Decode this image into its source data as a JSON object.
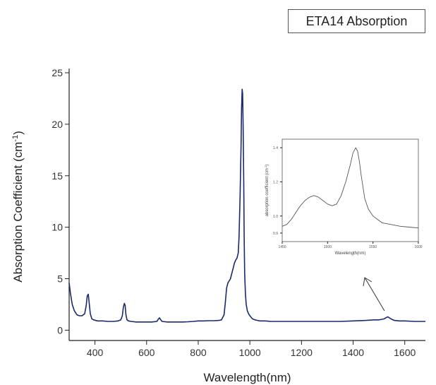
{
  "chart_data": [
    {
      "type": "line",
      "title": "ETA14 Absorption",
      "xlabel": "Wavelength(nm)",
      "ylabel": "Absorption Coefficient (cm",
      "ylabel_superscript": "-1",
      "ylabel_close": ")",
      "xlim": [
        300,
        1680
      ],
      "ylim": [
        -1,
        25
      ],
      "xticks": [
        400,
        600,
        800,
        1000,
        1200,
        1400,
        1600
      ],
      "yticks": [
        0,
        5,
        10,
        15,
        20,
        25
      ],
      "grid": false,
      "color": "#1a2a6c",
      "series": [
        {
          "x": [
            300,
            305,
            312,
            320,
            330,
            340,
            350,
            360,
            366,
            370,
            374,
            378,
            382,
            388,
            395,
            410,
            430,
            450,
            470,
            490,
            500,
            506,
            510,
            514,
            517,
            520,
            524,
            530,
            540,
            560,
            580,
            600,
            620,
            640,
            646,
            650,
            655,
            660,
            680,
            700,
            720,
            740,
            760,
            780,
            800,
            820,
            840,
            860,
            880,
            890,
            900,
            905,
            910,
            915,
            920,
            925,
            930,
            935,
            940,
            945,
            950,
            955,
            958,
            962,
            966,
            968,
            970,
            972,
            974,
            976,
            978,
            980,
            983,
            986,
            990,
            995,
            1000,
            1010,
            1020,
            1030,
            1040,
            1050,
            1060,
            1080,
            1100,
            1150,
            1200,
            1250,
            1300,
            1350,
            1400,
            1450,
            1480,
            1500,
            1510,
            1520,
            1530,
            1535,
            1540,
            1550,
            1560,
            1580,
            1600,
            1640,
            1680
          ],
          "y": [
            4.6,
            3.6,
            2.5,
            1.9,
            1.5,
            1.4,
            1.4,
            1.6,
            2.4,
            3.3,
            3.5,
            2.6,
            1.6,
            1.1,
            1.0,
            0.9,
            0.9,
            0.85,
            0.85,
            0.9,
            1.0,
            1.4,
            2.2,
            2.6,
            2.4,
            1.5,
            1.0,
            0.9,
            0.85,
            0.8,
            0.8,
            0.8,
            0.8,
            0.85,
            1.1,
            1.2,
            1.0,
            0.85,
            0.8,
            0.8,
            0.8,
            0.8,
            0.82,
            0.85,
            0.9,
            0.9,
            0.92,
            0.92,
            0.95,
            1.0,
            1.5,
            2.7,
            4.1,
            4.6,
            4.8,
            5.0,
            5.5,
            6.0,
            6.5,
            6.8,
            7.0,
            7.5,
            9.0,
            13.0,
            18.0,
            21.5,
            23.4,
            23.0,
            20.0,
            15.0,
            9.0,
            5.5,
            3.5,
            2.5,
            1.9,
            1.6,
            1.4,
            1.1,
            1.0,
            0.95,
            0.9,
            0.9,
            0.9,
            0.85,
            0.85,
            0.85,
            0.85,
            0.85,
            0.85,
            0.85,
            0.9,
            0.95,
            1.0,
            1.0,
            1.05,
            1.1,
            1.25,
            1.3,
            1.2,
            1.05,
            0.95,
            0.9,
            0.9,
            0.85,
            0.85
          ]
        }
      ]
    },
    {
      "type": "line",
      "xlabel": "Wavelength(nm)",
      "ylabel": "absorption coefficient (cm",
      "ylabel_superscript": "-1",
      "ylabel_close": ")",
      "xlim": [
        1450,
        1600
      ],
      "ylim": [
        0.85,
        1.45
      ],
      "xticks": [
        1450,
        1500,
        1550,
        1600
      ],
      "xtick_labels": [
        "1450",
        "1500",
        "1550",
        "1600"
      ],
      "yticks": [
        0.9,
        1.0,
        1.2,
        1.4
      ],
      "ytick_labels": [
        "0.9",
        "1.0",
        "1.2",
        "1.4"
      ],
      "grid": false,
      "color": "#555555",
      "series": [
        {
          "x": [
            1450,
            1455,
            1460,
            1465,
            1470,
            1475,
            1480,
            1485,
            1490,
            1495,
            1500,
            1505,
            1510,
            1515,
            1520,
            1525,
            1528,
            1531,
            1533,
            1535,
            1537,
            1539,
            1541,
            1545,
            1550,
            1555,
            1560,
            1570,
            1580,
            1590,
            1600
          ],
          "y": [
            0.94,
            0.95,
            0.98,
            1.02,
            1.06,
            1.09,
            1.11,
            1.12,
            1.11,
            1.09,
            1.07,
            1.06,
            1.07,
            1.12,
            1.2,
            1.3,
            1.37,
            1.4,
            1.38,
            1.32,
            1.24,
            1.17,
            1.1,
            1.04,
            1.0,
            0.98,
            0.96,
            0.95,
            0.94,
            0.935,
            0.93
          ]
        }
      ]
    }
  ]
}
